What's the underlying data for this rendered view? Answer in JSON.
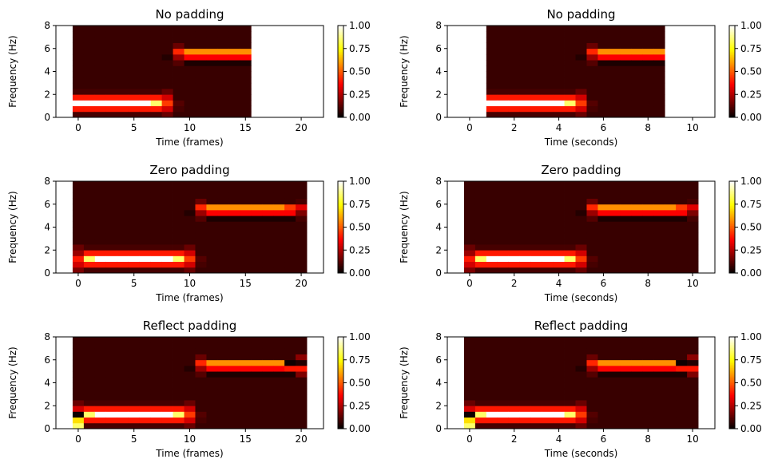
{
  "chart_data": [
    {
      "type": "heatmap",
      "title": "No padding",
      "xlabel": "Time (frames)",
      "ylabel": "Frequency (Hz)",
      "xlim": [
        -2,
        22
      ],
      "ylim": [
        0,
        8
      ],
      "xticks": [
        0,
        5,
        10,
        15,
        20
      ],
      "yticks": [
        0,
        2,
        4,
        6,
        8
      ],
      "x_step": 1,
      "y_step": 0.5,
      "x_start": 0,
      "frames": 16,
      "pad": "none",
      "colorbar": {
        "ticks": [
          "0.00",
          "0.25",
          "0.50",
          "0.75",
          "1.00"
        ],
        "colormap": "hot",
        "range": [
          0,
          1
        ]
      }
    },
    {
      "type": "heatmap",
      "title": "No padding",
      "xlabel": "Time (seconds)",
      "ylabel": "Frequency (Hz)",
      "xlim": [
        -1,
        11
      ],
      "ylim": [
        0,
        8
      ],
      "xticks": [
        0,
        2,
        4,
        6,
        8,
        10
      ],
      "yticks": [
        0,
        2,
        4,
        6,
        8
      ],
      "x_step": 0.5,
      "y_step": 0.5,
      "x_start": 1,
      "frames": 16,
      "pad": "none",
      "colorbar": {
        "ticks": [
          "0.00",
          "0.25",
          "0.50",
          "0.75",
          "1.00"
        ],
        "colormap": "hot",
        "range": [
          0,
          1
        ]
      }
    },
    {
      "type": "heatmap",
      "title": "Zero padding",
      "xlabel": "Time (frames)",
      "ylabel": "Frequency (Hz)",
      "xlim": [
        -2,
        22
      ],
      "ylim": [
        0,
        8
      ],
      "xticks": [
        0,
        5,
        10,
        15,
        20
      ],
      "yticks": [
        0,
        2,
        4,
        6,
        8
      ],
      "x_step": 1,
      "y_step": 0.5,
      "x_start": 0,
      "frames": 21,
      "pad": "zero",
      "colorbar": {
        "ticks": [
          "0.00",
          "0.25",
          "0.50",
          "0.75",
          "1.00"
        ],
        "colormap": "hot",
        "range": [
          0,
          1
        ]
      }
    },
    {
      "type": "heatmap",
      "title": "Zero padding",
      "xlabel": "Time (seconds)",
      "ylabel": "Frequency (Hz)",
      "xlim": [
        -1,
        11
      ],
      "ylim": [
        0,
        8
      ],
      "xticks": [
        0,
        2,
        4,
        6,
        8,
        10
      ],
      "yticks": [
        0,
        2,
        4,
        6,
        8
      ],
      "x_step": 0.5,
      "y_step": 0.5,
      "x_start": 0,
      "frames": 21,
      "pad": "zero",
      "colorbar": {
        "ticks": [
          "0.00",
          "0.25",
          "0.50",
          "0.75",
          "1.00"
        ],
        "colormap": "hot",
        "range": [
          0,
          1
        ]
      }
    },
    {
      "type": "heatmap",
      "title": "Reflect padding",
      "xlabel": "Time (frames)",
      "ylabel": "Frequency (Hz)",
      "xlim": [
        -2,
        22
      ],
      "ylim": [
        0,
        8
      ],
      "xticks": [
        0,
        5,
        10,
        15,
        20
      ],
      "yticks": [
        0,
        2,
        4,
        6,
        8
      ],
      "x_step": 1,
      "y_step": 0.5,
      "x_start": 0,
      "frames": 21,
      "pad": "reflect",
      "colorbar": {
        "ticks": [
          "0.00",
          "0.25",
          "0.50",
          "0.75",
          "1.00"
        ],
        "colormap": "hot",
        "range": [
          0,
          1
        ]
      }
    },
    {
      "type": "heatmap",
      "title": "Reflect padding",
      "xlabel": "Time (seconds)",
      "ylabel": "Frequency (Hz)",
      "xlim": [
        -1,
        11
      ],
      "ylim": [
        0,
        8
      ],
      "xticks": [
        0,
        2,
        4,
        6,
        8,
        10
      ],
      "yticks": [
        0,
        2,
        4,
        6,
        8
      ],
      "x_step": 0.5,
      "y_step": 0.5,
      "x_start": 0,
      "frames": 21,
      "pad": "reflect",
      "colorbar": {
        "ticks": [
          "0.00",
          "0.25",
          "0.50",
          "0.75",
          "1.00"
        ],
        "colormap": "hot",
        "range": [
          0,
          1
        ]
      }
    }
  ]
}
